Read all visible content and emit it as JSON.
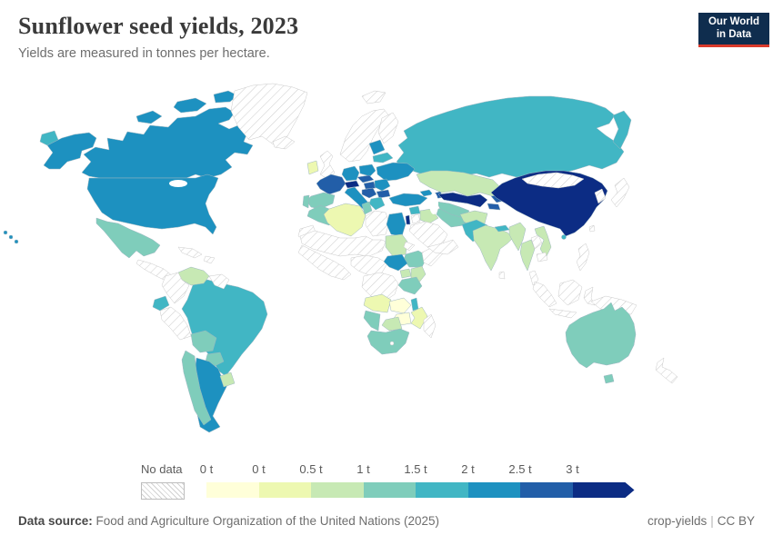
{
  "header": {
    "title": "Sunflower seed yields, 2023",
    "subtitle": "Yields are measured in tonnes per hectare."
  },
  "logo": {
    "line1": "Our World",
    "line2": "in Data",
    "bg": "#0f2d4e",
    "accent": "#d93a2b"
  },
  "legend": {
    "no_data_label": "No data",
    "labels": [
      "0 t",
      "0 t",
      "0.5 t",
      "1 t",
      "1.5 t",
      "2 t",
      "2.5 t",
      "3 t"
    ],
    "colors": [
      "#ffffd9",
      "#edf8b1",
      "#c7e9b4",
      "#7fcdbb",
      "#41b6c4",
      "#1d91c0",
      "#225ea8",
      "#0c2c84"
    ]
  },
  "footer": {
    "datasource_label": "Data source:",
    "datasource_value": "Food and Agriculture Organization of the United Nations (2025)",
    "slug": "crop-yields",
    "separator": "|",
    "license": "CC BY"
  },
  "chart_data": {
    "type": "choropleth",
    "title": "Sunflower seed yields, 2023",
    "subtitle": "Yields are measured in tonnes per hectare.",
    "unit": "tonnes per hectare",
    "year": 2023,
    "legend_bins": [
      "0 t",
      "0 t",
      "0.5 t",
      "1 t",
      "1.5 t",
      "2 t",
      "2.5 t",
      "3 t"
    ],
    "palette": [
      "#ffffd9",
      "#edf8b1",
      "#c7e9b4",
      "#7fcdbb",
      "#41b6c4",
      "#1d91c0",
      "#225ea8",
      "#0c2c84"
    ],
    "no_data_hatched": true,
    "values": {
      "usa": 5,
      "canada": 5,
      "argentina": 5,
      "ukraine": 5,
      "turkey": 5,
      "egypt": 5,
      "south_sudan": 5,
      "italy": 5,
      "germany": 5,
      "poland": 5,
      "romania": 5,
      "baltics": 5,
      "georgia": 5,
      "russia": 4,
      "brazil": 4,
      "ecuador": 4,
      "greece": 4,
      "belarus": 4,
      "syria": 4,
      "pakistan": 4,
      "malawi": 4,
      "nepal": 4,
      "hainan": 4,
      "mexico": 3,
      "spain": 3,
      "portugal": 3,
      "morocco": 3,
      "tunisia": 3,
      "iran": 3,
      "ethiopia": 3,
      "tanzania": 3,
      "south_africa": 3,
      "namibia": 3,
      "australia": 3,
      "bolivia": 3,
      "paraguay": 3,
      "chile": 3,
      "turkmenistan": 3,
      "india": 2,
      "kazakhstan": 2,
      "venezuela": 2,
      "sudan": 2,
      "kenya": 2,
      "uganda": 2,
      "botswana": 2,
      "myanmar": 2,
      "thailand": 2,
      "vietnam": 2,
      "uruguay": 2,
      "iraq": 2,
      "afghanistan": 2,
      "algeria": 1,
      "ireland": 1,
      "angola": 1,
      "mozambique": 1,
      "zambia": 0,
      "zimbabwe": 0,
      "france": 6,
      "czechia_slovakia": 6,
      "hungary": 6,
      "balkans": 6,
      "bulgaria": 6,
      "kyrgyzstan": 6,
      "tajikistan": 6,
      "azerbaijan": 6,
      "china": 7,
      "uzbekistan": 7,
      "israel": 7,
      "austria_switzerland": 7,
      "greenland": null,
      "iceland": null,
      "uk": null,
      "scandinavia": null,
      "finland": null,
      "svalbard": null,
      "mongolia": null,
      "japan": null,
      "korea": null,
      "taiwan": null,
      "sri_lanka": null,
      "laos": null,
      "cambodia": null,
      "malay_peninsula": null,
      "sumatra": null,
      "java": null,
      "borneo": null,
      "sulawesi": null,
      "philippines": null,
      "new_guinea": null,
      "new_zealand": null,
      "saudi_arabia": null,
      "yemen_oman": null,
      "jordan": null,
      "libya": null,
      "western_sahara": null,
      "sahara_band": null,
      "west_africa": null,
      "nigeria_cameroon": null,
      "drc": null,
      "somalia": null,
      "eritrea": null,
      "madagascar": null,
      "colombia": null,
      "peru": null,
      "guyanas": null,
      "central_america": null,
      "cuba": null,
      "hispaniola": null,
      "lesotho": null
    }
  }
}
